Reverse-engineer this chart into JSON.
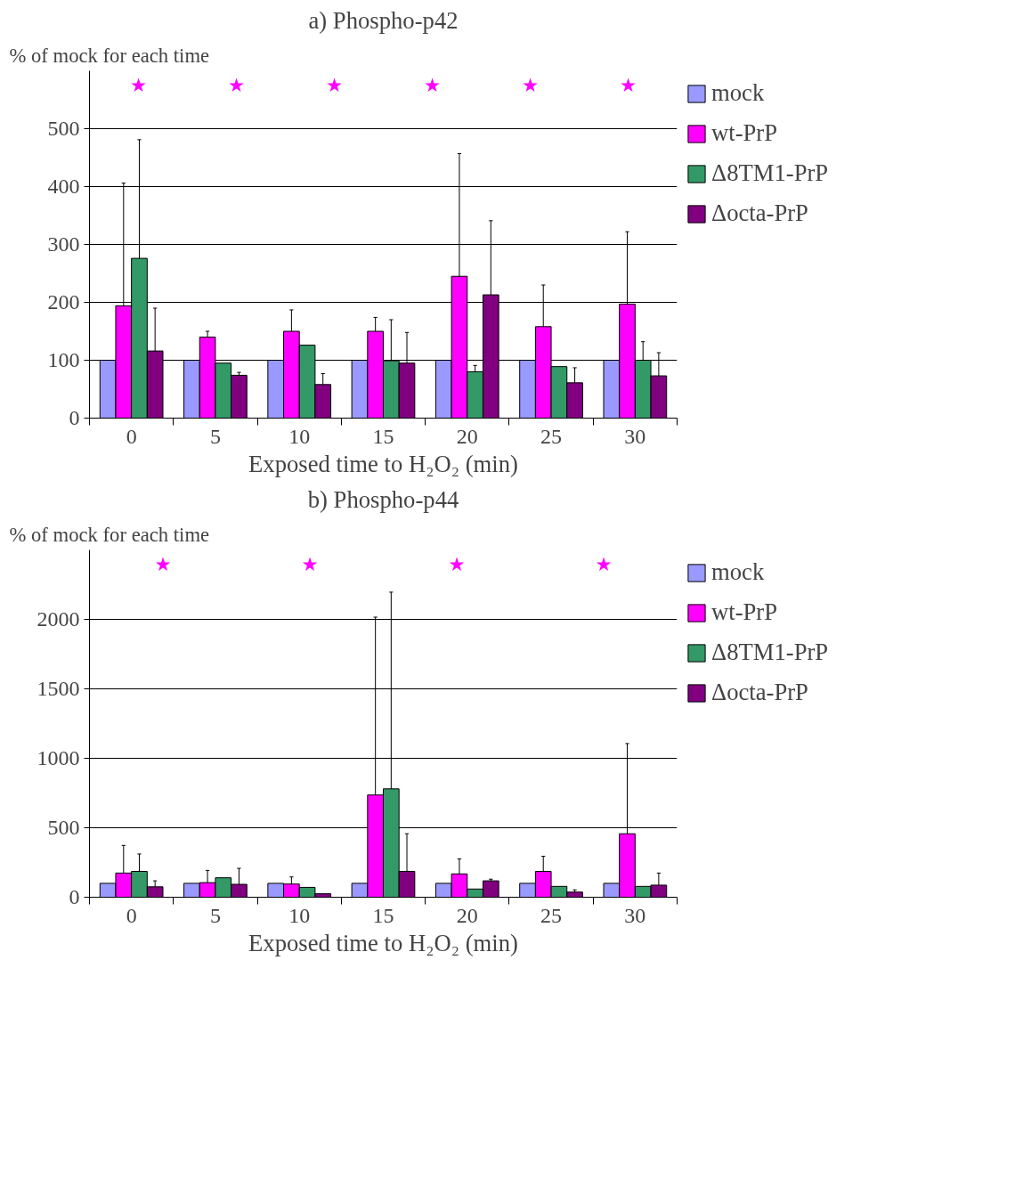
{
  "chart_data": [
    {
      "type": "bar",
      "title": "a) Phospho-p42",
      "xlabel": "Exposed time to H₂O₂ (min)",
      "ylabel": "% of mock for each time",
      "categories": [
        "0",
        "5",
        "10",
        "15",
        "20",
        "25",
        "30"
      ],
      "series": [
        {
          "name": "mock",
          "color": "#9999ff",
          "values": [
            100,
            100,
            100,
            100,
            100,
            100,
            100
          ]
        },
        {
          "name": "wt-PrP",
          "color": "#ff00ff",
          "values": [
            194,
            140,
            150,
            150,
            245,
            158,
            197
          ],
          "errors": [
            [
              194,
              406
            ],
            [
              140,
              150
            ],
            [
              150,
              187
            ],
            [
              150,
              174
            ],
            [
              245,
              457
            ],
            [
              158,
              230
            ],
            [
              197,
              322
            ]
          ]
        },
        {
          "name": "Δ8TM1-PrP",
          "color": "#339966",
          "values": [
            276,
            95,
            126,
            99,
            80,
            89,
            100
          ],
          "errors": [
            [
              276,
              481
            ],
            null,
            null,
            [
              99,
              170
            ],
            [
              80,
              91
            ],
            null,
            [
              100,
              132
            ]
          ]
        },
        {
          "name": "Δocta-PrP",
          "color": "#800080",
          "values": [
            116,
            74,
            58,
            95,
            213,
            61,
            73
          ],
          "errors": [
            [
              116,
              190
            ],
            [
              74,
              79
            ],
            [
              58,
              77
            ],
            [
              95,
              148
            ],
            [
              213,
              341
            ],
            [
              61,
              87
            ],
            [
              73,
              113
            ]
          ]
        }
      ],
      "annotations": [
        "★",
        "★",
        "★",
        "★",
        "★",
        "★"
      ],
      "ylim": [
        0,
        600
      ],
      "yticks": [
        0,
        100,
        200,
        300,
        400,
        500
      ],
      "grid": "y",
      "legend": "right"
    },
    {
      "type": "bar",
      "title": "b) Phospho-p44",
      "xlabel": "Exposed time to H₂O₂ (min)",
      "ylabel": "% of mock for each time",
      "categories": [
        "0",
        "5",
        "10",
        "15",
        "20",
        "25",
        "30"
      ],
      "series": [
        {
          "name": "mock",
          "color": "#9999ff",
          "values": [
            100,
            100,
            100,
            100,
            100,
            100,
            100
          ]
        },
        {
          "name": "wt-PrP",
          "color": "#ff00ff",
          "values": [
            174,
            105,
            95,
            736,
            168,
            186,
            457
          ],
          "errors": [
            [
              174,
              373
            ],
            [
              105,
              193
            ],
            [
              95,
              146
            ],
            [
              736,
              2016
            ],
            [
              168,
              276
            ],
            [
              186,
              295
            ],
            [
              457,
              1106
            ]
          ]
        },
        {
          "name": "Δ8TM1-PrP",
          "color": "#339966",
          "values": [
            186,
            140,
            71,
            780,
            59,
            78,
            78
          ],
          "errors": [
            [
              186,
              311
            ],
            null,
            null,
            [
              780,
              2196
            ],
            null,
            null,
            null
          ]
        },
        {
          "name": "Δocta-PrP",
          "color": "#800080",
          "values": [
            75,
            93,
            25,
            186,
            118,
            37,
            87
          ],
          "errors": [
            [
              75,
              118
            ],
            [
              93,
              208
            ],
            null,
            [
              186,
              457
            ],
            [
              118,
              130
            ],
            [
              37,
              53
            ],
            [
              87,
              174
            ]
          ]
        }
      ],
      "annotations": [
        "★",
        "★",
        "★",
        "★"
      ],
      "ylim": [
        0,
        2500
      ],
      "yticks": [
        0,
        500,
        1000,
        1500,
        2000
      ],
      "grid": "y",
      "legend": "right"
    }
  ]
}
